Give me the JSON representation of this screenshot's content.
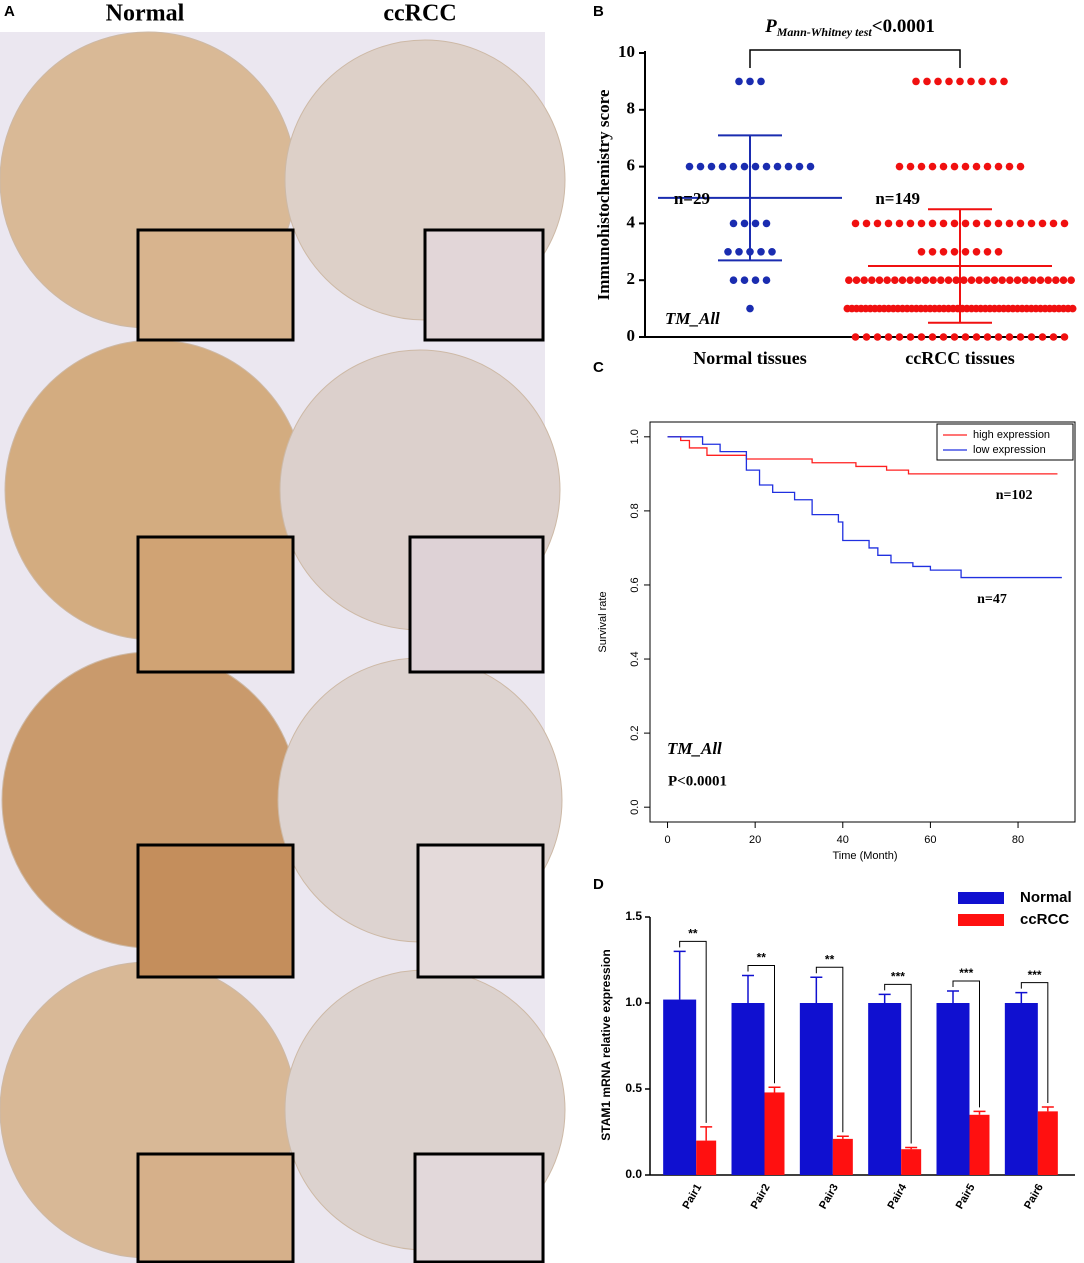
{
  "panel_a": {
    "label": "A",
    "columns": [
      "Normal",
      "ccRCC"
    ]
  },
  "chart_data": [
    {
      "type": "strip",
      "label": "B",
      "annotation_p": "P",
      "annotation_sub": "Mann-Whitney test",
      "annotation_rest": "<0.0001",
      "ylabel": "Immunohistochemistry score",
      "categories": [
        "Normal tissues",
        "ccRCC tissues"
      ],
      "ylim": [
        0,
        10
      ],
      "yticks": [
        0,
        2,
        4,
        6,
        8,
        10
      ],
      "note": "TM_All",
      "series": [
        {
          "name": "Normal tissues",
          "color": "#1a2cb0",
          "n_label": "n=29",
          "mean": 4.9,
          "sd": 2.2,
          "values": [
            9,
            9,
            9,
            6,
            6,
            6,
            6,
            6,
            6,
            6,
            6,
            6,
            6,
            6,
            6,
            4,
            4,
            4,
            4,
            3,
            3,
            3,
            3,
            3,
            2,
            2,
            2,
            2,
            1
          ]
        },
        {
          "name": "ccRCC tissues",
          "color": "#f01010",
          "n_label": "n=149",
          "mean": 2.5,
          "sd": 2.0,
          "values": [
            9,
            9,
            9,
            9,
            9,
            9,
            9,
            9,
            9,
            6,
            6,
            6,
            6,
            6,
            6,
            6,
            6,
            6,
            6,
            6,
            6,
            4,
            4,
            4,
            4,
            4,
            4,
            4,
            4,
            4,
            4,
            4,
            4,
            4,
            4,
            4,
            4,
            4,
            4,
            4,
            4,
            3,
            3,
            3,
            3,
            3,
            3,
            3,
            3,
            2,
            2,
            2,
            2,
            2,
            2,
            2,
            2,
            2,
            2,
            2,
            2,
            2,
            2,
            2,
            2,
            2,
            2,
            2,
            2,
            2,
            2,
            2,
            2,
            2,
            2,
            2,
            2,
            2,
            2,
            1,
            1,
            1,
            1,
            1,
            1,
            1,
            1,
            1,
            1,
            1,
            1,
            1,
            1,
            1,
            1,
            1,
            1,
            1,
            1,
            1,
            1,
            1,
            1,
            1,
            1,
            1,
            1,
            1,
            1,
            1,
            1,
            1,
            1,
            1,
            1,
            1,
            1,
            1,
            1,
            1,
            1,
            1,
            1,
            1,
            1,
            1,
            1,
            1,
            1,
            0,
            0,
            0,
            0,
            0,
            0,
            0,
            0,
            0,
            0,
            0,
            0,
            0,
            0,
            0,
            0,
            0,
            0,
            0,
            0
          ]
        }
      ]
    },
    {
      "type": "line",
      "label": "C",
      "xlabel": "Time (Month)",
      "ylabel": "Survival rate",
      "xlim": [
        -4,
        93
      ],
      "xticks": [
        0,
        20,
        40,
        60,
        80
      ],
      "ylim": [
        -0.04,
        1.04
      ],
      "yticks": [
        {
          "value": 0,
          "label": "0.0"
        },
        {
          "value": 0.2,
          "label": "0.2"
        },
        {
          "value": 0.4,
          "label": "0.4"
        },
        {
          "value": 0.6,
          "label": "0.6"
        },
        {
          "value": 0.8,
          "label": "0.8"
        },
        {
          "value": 1,
          "label": "1.0"
        }
      ],
      "legend": "top-right",
      "note": "TM_All",
      "p_label": "P<0.0001",
      "series": [
        {
          "name": "high expression",
          "color": "#ff2020",
          "n_label": "n=102",
          "x": [
            0,
            3,
            5,
            9,
            18,
            33,
            43,
            50,
            55,
            89
          ],
          "values": [
            1,
            0.99,
            0.97,
            0.95,
            0.94,
            0.93,
            0.92,
            0.91,
            0.9,
            0.9
          ]
        },
        {
          "name": "low expression",
          "color": "#2030e0",
          "n_label": "n=47",
          "x": [
            0,
            8,
            12,
            18,
            21,
            24,
            29,
            33,
            39,
            40,
            46,
            48,
            51,
            56,
            60,
            67,
            90
          ],
          "values": [
            1,
            0.98,
            0.96,
            0.91,
            0.87,
            0.85,
            0.83,
            0.79,
            0.77,
            0.72,
            0.7,
            0.68,
            0.66,
            0.65,
            0.64,
            0.62,
            0.62
          ]
        }
      ]
    },
    {
      "type": "bar",
      "label": "D",
      "ylabel": "STAM1 mRNA relative expression",
      "categories": [
        "Pair1",
        "Pair2",
        "Pair3",
        "Pair4",
        "Pair5",
        "Pair6"
      ],
      "ylim": [
        0,
        1.5
      ],
      "yticks": [
        {
          "value": 0,
          "label": "0.0"
        },
        {
          "value": 0.5,
          "label": "0.5"
        },
        {
          "value": 1,
          "label": "1.0"
        },
        {
          "value": 1.5,
          "label": "1.5"
        }
      ],
      "significance": [
        "**",
        "**",
        "**",
        "***",
        "***",
        "***"
      ],
      "series": [
        {
          "name": "Normal",
          "color": "#1010d0",
          "values": [
            1.02,
            1.0,
            1.0,
            1.0,
            1.0,
            1.0
          ],
          "errors": [
            0.28,
            0.16,
            0.15,
            0.05,
            0.07,
            0.06
          ]
        },
        {
          "name": "ccRCC",
          "color": "#ff1010",
          "values": [
            0.2,
            0.48,
            0.21,
            0.15,
            0.35,
            0.37
          ],
          "errors": [
            0.08,
            0.03,
            0.015,
            0.01,
            0.02,
            0.025
          ]
        }
      ]
    }
  ]
}
